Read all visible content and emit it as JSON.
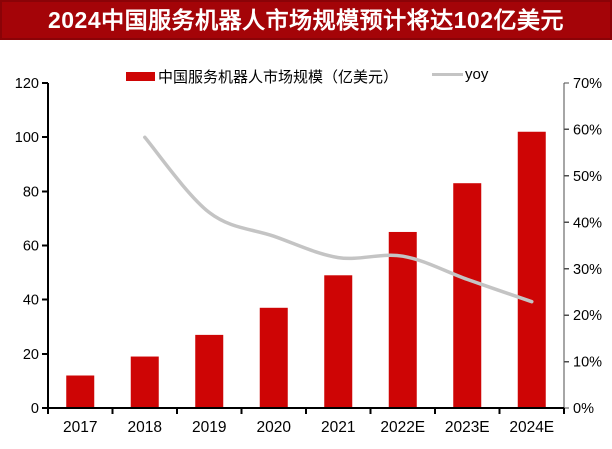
{
  "banner": {
    "title": "2024中国服务机器人市场规模预计将达102亿美元",
    "bg_color": "#A40408",
    "border_color": "#8A0307",
    "text_color": "#FFFFFF"
  },
  "chart_data": {
    "type": "bar",
    "subtype": "bar+line-combo",
    "categories": [
      "2017",
      "2018",
      "2019",
      "2020",
      "2021",
      "2022E",
      "2023E",
      "2024E"
    ],
    "series": [
      {
        "name": "中国服务机器人市场规模（亿美元）",
        "type": "bar",
        "axis": "left",
        "color": "#CE0505",
        "values": [
          12,
          19,
          27,
          37,
          49,
          65,
          83,
          102
        ]
      },
      {
        "name": "yoy",
        "type": "line",
        "axis": "right",
        "color": "#C4C4C4",
        "values": [
          null,
          58.3,
          42.1,
          37.0,
          32.4,
          32.7,
          27.7,
          22.9
        ]
      }
    ],
    "left_axis": {
      "min": 0,
      "max": 120,
      "step": 20,
      "tick_labels": [
        "0",
        "20",
        "40",
        "60",
        "80",
        "100",
        "120"
      ]
    },
    "right_axis": {
      "min": 0,
      "max": 70,
      "step": 10,
      "tick_labels": [
        "0%",
        "10%",
        "20%",
        "30%",
        "40%",
        "50%",
        "60%",
        "70%"
      ],
      "unit": "%"
    },
    "legend_position": "top",
    "grid": false,
    "axis_color": "#000000",
    "right_axis_line_color": "#4D4D4D",
    "tick_label_color": "#000000"
  }
}
